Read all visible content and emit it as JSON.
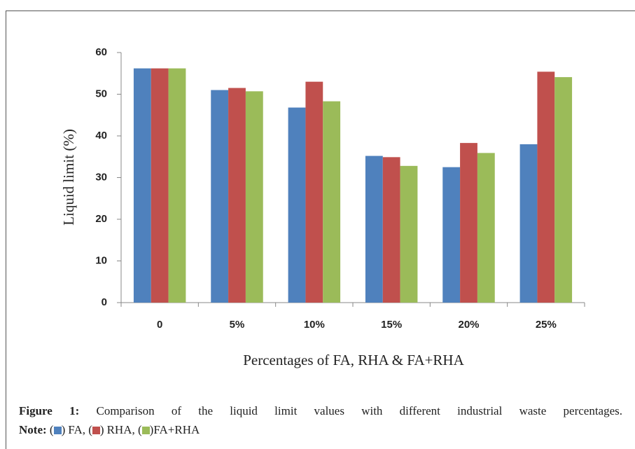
{
  "chart_data": {
    "type": "bar",
    "y_label": "Liquid limit (%)",
    "x_label": "Percentages of FA, RHA & FA+RHA",
    "categories": [
      "0",
      "5%",
      "10%",
      "15%",
      "20%",
      "25%"
    ],
    "series": [
      {
        "name": "FA",
        "color": "#4f81bd",
        "values": [
          56.2,
          51.0,
          46.8,
          35.2,
          32.5,
          38.0
        ]
      },
      {
        "name": "RHA",
        "color": "#c0504d",
        "values": [
          56.2,
          51.5,
          53.0,
          34.9,
          38.3,
          55.4
        ]
      },
      {
        "name": "FA+RHA",
        "color": "#9bbb59",
        "values": [
          56.2,
          50.7,
          48.3,
          32.8,
          35.9,
          54.1
        ]
      }
    ],
    "ylim": [
      0,
      60
    ],
    "yticks": [
      0,
      10,
      20,
      30,
      40,
      50,
      60
    ],
    "grid": false,
    "caption_label": "Figure 1:",
    "caption": "Comparison of the liquid limit values with different industrial waste percentages.",
    "note_label": "Note:"
  }
}
